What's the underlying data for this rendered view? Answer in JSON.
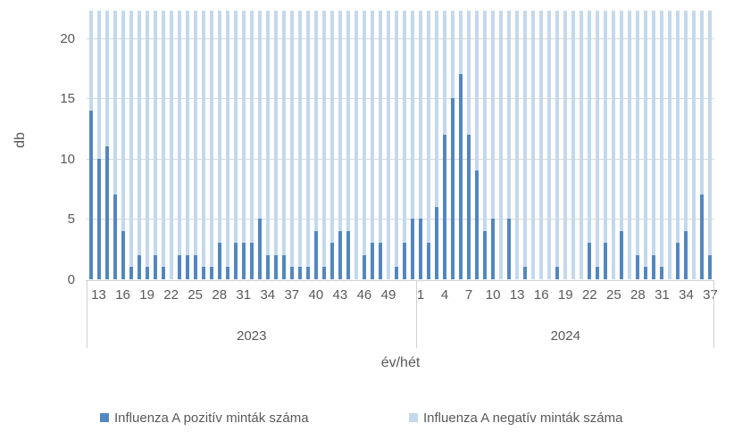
{
  "chart_data": {
    "type": "bar",
    "title": "",
    "ylabel": "db",
    "xlabel": "év/hét",
    "y_ticks": [
      0,
      5,
      10,
      15,
      20
    ],
    "ylim": [
      0,
      20
    ],
    "plot_top_value": 22.26,
    "grid": true,
    "legend_position": "bottom",
    "axis_text_color": "#595959",
    "gridline_color": "#d9d9d9",
    "groups": [
      {
        "year": "2023",
        "week_start": 12,
        "week_end": 52,
        "labeled_weeks": [
          13,
          16,
          19,
          22,
          25,
          28,
          31,
          34,
          37,
          40,
          43,
          46,
          49
        ]
      },
      {
        "year": "2024",
        "week_start": 1,
        "week_end": 37,
        "labeled_weeks": [
          1,
          4,
          7,
          10,
          13,
          16,
          19,
          22,
          25,
          28,
          31,
          34,
          37
        ]
      }
    ],
    "series": [
      {
        "name": "Influenza A pozitív minták száma",
        "color": "#5387c1",
        "values_by_group": [
          [
            14,
            10,
            11,
            7,
            4,
            1,
            2,
            1,
            2,
            1,
            0,
            2,
            2,
            2,
            1,
            1,
            3,
            1,
            3,
            3,
            3,
            5,
            2,
            2,
            2,
            1,
            1,
            1,
            4,
            1,
            3,
            4,
            4,
            0,
            2,
            3,
            3,
            0,
            1,
            3,
            5
          ],
          [
            5,
            3,
            6,
            12,
            15,
            17,
            12,
            9,
            4,
            5,
            0,
            5,
            0,
            1,
            0,
            0,
            0,
            1,
            0,
            0,
            0,
            3,
            1,
            3,
            0,
            4,
            0,
            2,
            1,
            2,
            1,
            0,
            3,
            4,
            0,
            7,
            2
          ]
        ]
      },
      {
        "name": "Influenza A negatív minták száma",
        "color": "#c3d9ed",
        "clipped_full_height": true,
        "note": "every negative-sample bar exceeds the y-axis maximum (>20) and is clipped at the top of the plot area"
      }
    ]
  }
}
